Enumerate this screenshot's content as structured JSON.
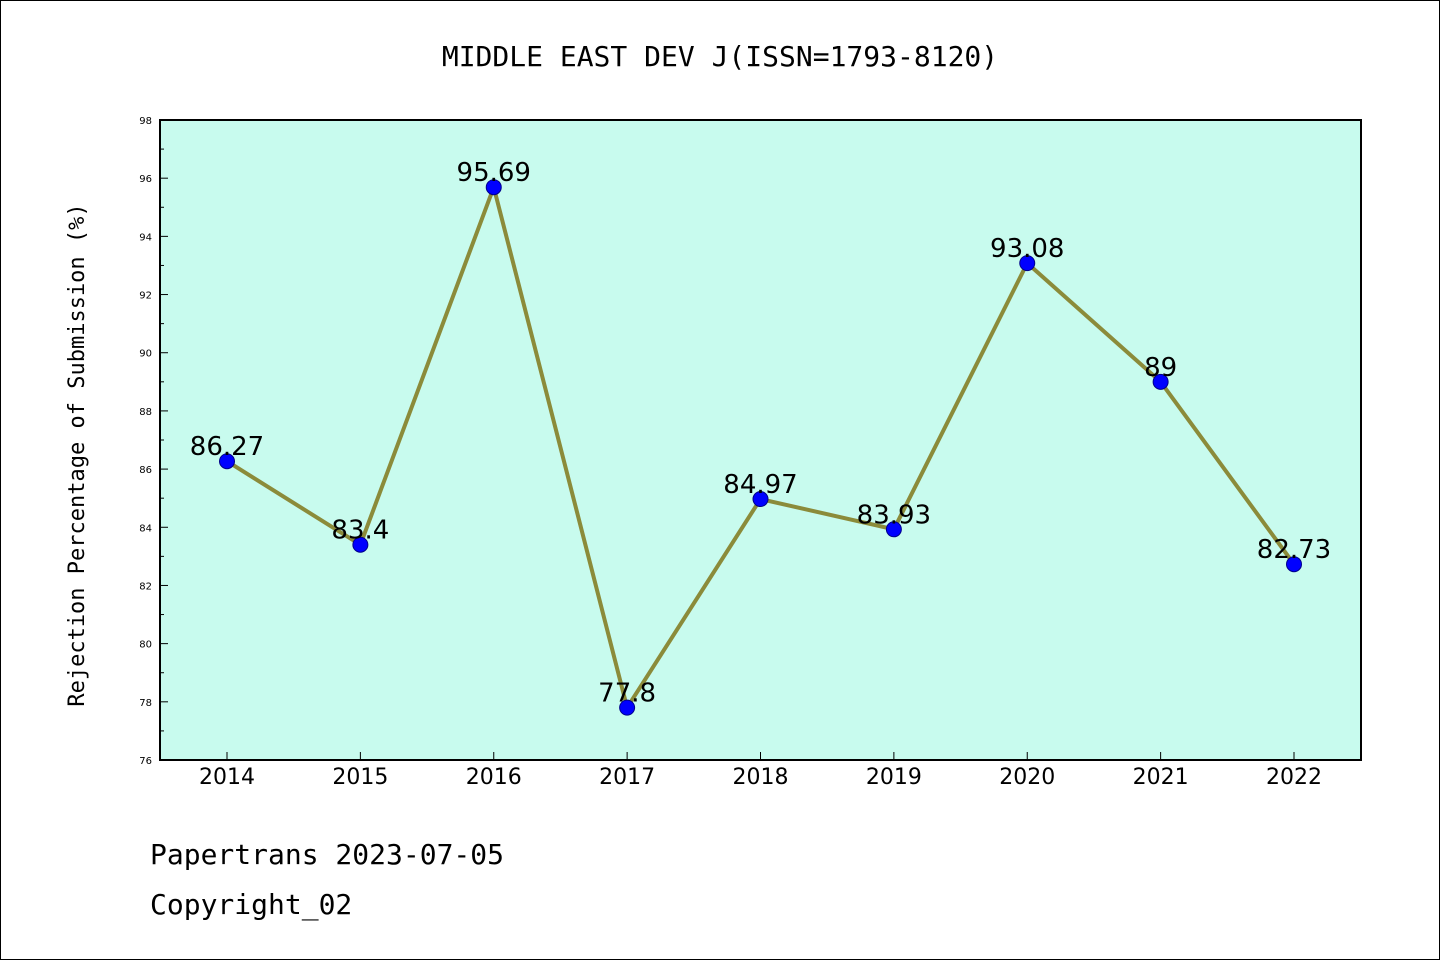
{
  "chart_data": {
    "type": "line",
    "title": "MIDDLE EAST DEV J(ISSN=1793-8120)",
    "xlabel": "",
    "ylabel": "Rejection Percentage of Submission (%)",
    "categories": [
      "2014",
      "2015",
      "2016",
      "2017",
      "2018",
      "2019",
      "2020",
      "2021",
      "2022"
    ],
    "series": [
      {
        "values": [
          86.27,
          83.4,
          95.69,
          77.8,
          84.97,
          83.93,
          93.08,
          89,
          82.73
        ],
        "data_labels": [
          "86.27",
          "83.4",
          "95.69",
          "77.8",
          "84.97",
          "83.93",
          "93.08",
          "89",
          "82.73"
        ]
      }
    ],
    "ylim": [
      76,
      98
    ],
    "yticks": [
      "76",
      "78",
      "80",
      "82",
      "84",
      "86",
      "88",
      "90",
      "92",
      "94",
      "96",
      "98"
    ],
    "grid": false,
    "colors": {
      "plot_background": "#c8fbee",
      "line": "#8b8b3a",
      "marker": "#0000ff"
    }
  },
  "footer": {
    "line1": "Papertrans 2023-07-05",
    "line2": "Copyright_02"
  }
}
